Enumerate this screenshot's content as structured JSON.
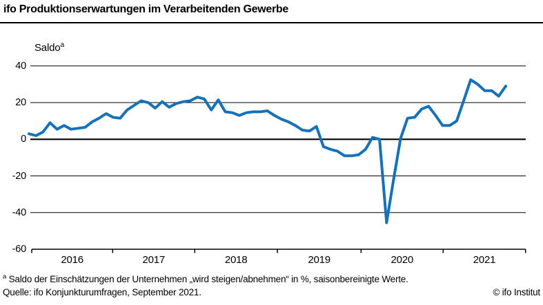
{
  "header": {
    "title": "ifo Produktionserwartungen im Verarbeitenden Gewerbe"
  },
  "chart_data": {
    "type": "line",
    "title": "ifo Produktionserwartungen im Verarbeitenden Gewerbe",
    "ylabel": "Saldo",
    "ylabel_superscript": "a",
    "xlabel": "",
    "y_ticks": [
      40,
      20,
      0,
      -20,
      -40,
      -60
    ],
    "ylim": [
      -60,
      45
    ],
    "x_tick_labels": [
      "2016",
      "2017",
      "2018",
      "2019",
      "2020",
      "2021"
    ],
    "grid": "horizontal",
    "legend": "none",
    "line_color": "#1571b8",
    "series": [
      {
        "start": "2016-01",
        "frequency": "monthly",
        "values": [
          3,
          2,
          4,
          9,
          5.5,
          7.5,
          5.5,
          6,
          6.5,
          9.5,
          11.5,
          14,
          12,
          11.5,
          16,
          18.5,
          21,
          20,
          17,
          20.5,
          17.5,
          19.5,
          20.5,
          21,
          23,
          22,
          16,
          21.5,
          15,
          14.5,
          13,
          14.5,
          15,
          15,
          15.5,
          13,
          11,
          9.5,
          7.5,
          5,
          4.5,
          7,
          -4,
          -5.5,
          -6.5,
          -9,
          -9,
          -8.5,
          -5.5,
          1,
          0,
          -45.5,
          -22,
          0.5,
          11.5,
          12,
          16.5,
          18,
          13,
          7.5,
          7.5,
          10,
          21,
          32.5,
          30,
          26.5,
          26.5,
          23.5,
          29
        ]
      }
    ]
  },
  "footer": {
    "footnote_superscript": "a",
    "footnote": " Saldo der Einschätzungen der Unternehmen „wird steigen/abnehmen“ in %, saisonbereinigte Werte.",
    "source": "Quelle: ifo Konjunkturumfragen, September 2021.",
    "copyright": "© ifo Institut"
  }
}
